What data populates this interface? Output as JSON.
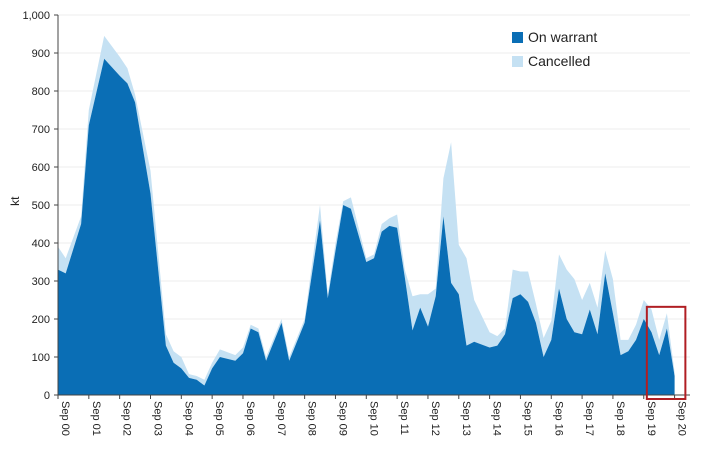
{
  "chart_data": {
    "type": "area",
    "title": "",
    "xlabel": "",
    "ylabel": "kt",
    "ylim": [
      0,
      1000
    ],
    "yticks": [
      0,
      100,
      200,
      300,
      400,
      500,
      600,
      700,
      800,
      900,
      1000
    ],
    "ytick_labels": [
      "0",
      "100",
      "200",
      "300",
      "400",
      "500",
      "600",
      "700",
      "800",
      "900",
      "1,000"
    ],
    "xlim": [
      0,
      20.5
    ],
    "xticks": [
      0,
      1,
      2,
      3,
      4,
      5,
      6,
      7,
      8,
      9,
      10,
      11,
      12,
      13,
      14,
      15,
      16,
      17,
      18,
      19,
      20
    ],
    "xtick_labels": [
      "Sep 00",
      "Sep 01",
      "Sep 02",
      "Sep 03",
      "Sep 04",
      "Sep 05",
      "Sep 06",
      "Sep 07",
      "Sep 08",
      "Sep 09",
      "Sep 10",
      "Sep 11",
      "Sep 12",
      "Sep 13",
      "Sep 14",
      "Sep 15",
      "Sep 16",
      "Sep 17",
      "Sep 18",
      "Sep 19",
      "Sep 20"
    ],
    "x_unit_note": "years since Sep 2000",
    "legend_position": "top-right",
    "stacking": "stacked",
    "series": [
      {
        "name": "On warrant",
        "color": "#0a6eb5",
        "x": [
          0,
          0.25,
          0.75,
          1,
          1.5,
          2,
          2.25,
          2.5,
          3,
          3.5,
          3.75,
          4,
          4.25,
          4.5,
          4.75,
          5,
          5.25,
          5.75,
          6,
          6.25,
          6.5,
          6.75,
          7,
          7.25,
          7.5,
          8,
          8.5,
          8.75,
          9,
          9.25,
          9.5,
          10,
          10.25,
          10.5,
          10.75,
          11,
          11.25,
          11.5,
          11.75,
          12,
          12.25,
          12.5,
          12.75,
          13,
          13.25,
          13.5,
          14,
          14.25,
          14.5,
          14.75,
          15,
          15.25,
          15.5,
          15.75,
          16,
          16.25,
          16.5,
          16.75,
          17,
          17.25,
          17.5,
          17.75,
          18,
          18.25,
          18.5,
          18.75,
          19,
          19.25,
          19.5,
          19.75,
          20
        ],
        "values": [
          330,
          320,
          450,
          710,
          885,
          840,
          820,
          770,
          530,
          130,
          85,
          70,
          45,
          40,
          25,
          70,
          100,
          90,
          110,
          175,
          165,
          90,
          140,
          190,
          90,
          190,
          460,
          255,
          380,
          500,
          490,
          350,
          360,
          430,
          445,
          440,
          310,
          170,
          230,
          180,
          260,
          470,
          295,
          265,
          130,
          140,
          125,
          130,
          160,
          255,
          265,
          245,
          190,
          100,
          145,
          280,
          200,
          165,
          160,
          225,
          160,
          320,
          215,
          105,
          115,
          145,
          200,
          165,
          105,
          175,
          50
        ],
        "legend_label": "On warrant"
      },
      {
        "name": "Cancelled",
        "color": "#c5e1f3",
        "x": [
          0,
          0.25,
          0.75,
          1,
          1.5,
          2,
          2.25,
          2.5,
          3,
          3.5,
          3.75,
          4,
          4.25,
          4.5,
          4.75,
          5,
          5.25,
          5.75,
          6,
          6.25,
          6.5,
          6.75,
          7,
          7.25,
          7.5,
          8,
          8.5,
          8.75,
          9,
          9.25,
          9.5,
          10,
          10.25,
          10.5,
          10.75,
          11,
          11.25,
          11.5,
          11.75,
          12,
          12.25,
          12.5,
          12.75,
          13,
          13.25,
          13.5,
          14,
          14.25,
          14.5,
          14.75,
          15,
          15.25,
          15.5,
          15.75,
          16,
          16.25,
          16.5,
          16.75,
          17,
          17.25,
          17.5,
          17.75,
          18,
          18.25,
          18.5,
          18.75,
          19,
          19.25,
          19.5,
          19.75,
          20
        ],
        "values": [
          60,
          40,
          20,
          40,
          60,
          50,
          40,
          20,
          60,
          30,
          30,
          30,
          10,
          10,
          15,
          15,
          20,
          15,
          15,
          10,
          10,
          10,
          10,
          10,
          10,
          10,
          40,
          10,
          20,
          10,
          30,
          10,
          10,
          20,
          20,
          35,
          20,
          90,
          35,
          85,
          20,
          100,
          370,
          130,
          230,
          110,
          40,
          25,
          15,
          75,
          60,
          80,
          50,
          50,
          50,
          90,
          130,
          140,
          90,
          70,
          70,
          60,
          90,
          40,
          30,
          40,
          50,
          60,
          40,
          40,
          10
        ],
        "legend_label": "Cancelled"
      }
    ],
    "annotations": [
      {
        "type": "highlight-box",
        "color": "#b01e23",
        "x_from": 19.1,
        "x_to": 20.35,
        "y_from": 0,
        "y_to": 232,
        "note": "outline around the most recent period"
      }
    ]
  }
}
